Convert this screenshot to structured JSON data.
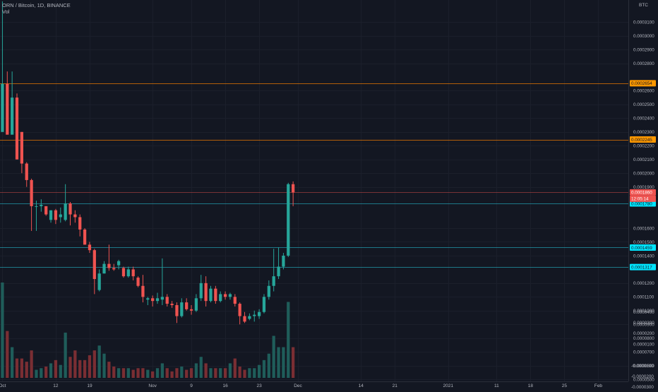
{
  "header": {
    "title": "ORN / Bitcoin, 1D, BINANCE",
    "volume_label": "Vol"
  },
  "axis": {
    "currency": "BTC"
  },
  "colors": {
    "background": "#131722",
    "up": "#26a69a",
    "down": "#ef5350",
    "up_volume": "#1f5d5a",
    "down_volume": "#7a2e33",
    "horizontal_line_orange": "#f57c00",
    "horizontal_line_teal": "#26c6da",
    "price_tag_red": "#ef5350",
    "price_tag_cyan": "#00e5ff",
    "price_tag_orange": "#ff9800"
  },
  "chart_data": {
    "type": "candlestick",
    "price_ylim": [
      4.85e-05,
      0.000326
    ],
    "price_ticks": [
      "0.0003100",
      "0.0003000",
      "0.0002900",
      "0.0002800",
      "0.0002600",
      "0.0002500",
      "0.0002400",
      "0.0002300",
      "0.0002200",
      "0.0002100",
      "0.0002000",
      "0.0001900",
      "0.0001600",
      "0.0001500",
      "0.0001400",
      "0.0001200",
      "0.0001100",
      "0.0001000",
      "0.0000900",
      "0.0000800",
      "0.0000700",
      "0.0000600",
      "0.0000500"
    ],
    "volume_ticks": [
      "0.0000400",
      "0.0000300",
      "0.0000200",
      "0.0000100",
      "-0.0000100",
      "-0.0000200",
      "-0.0000300"
    ],
    "x_ticks": [
      {
        "label": "Oct",
        "index": 0
      },
      {
        "label": "12",
        "index": 11
      },
      {
        "label": "19",
        "index": 18
      },
      {
        "label": "Nov",
        "index": 31
      },
      {
        "label": "9",
        "index": 39
      },
      {
        "label": "16",
        "index": 46
      },
      {
        "label": "23",
        "index": 53
      },
      {
        "label": "Dec",
        "index": 61
      },
      {
        "label": "14",
        "index": 74
      },
      {
        "label": "21",
        "index": 81
      },
      {
        "label": "2021",
        "index": 92
      },
      {
        "label": "11",
        "index": 102
      },
      {
        "label": "18",
        "index": 109
      },
      {
        "label": "25",
        "index": 116
      },
      {
        "label": "Feb",
        "index": 123
      }
    ],
    "x_domain": [
      -0.5,
      129.2
    ],
    "horizontal_lines": [
      {
        "value": 0.0002654,
        "label": "0.0002654",
        "style": "orange"
      },
      {
        "value": 0.0002245,
        "label": "0.0002245",
        "style": "orange"
      },
      {
        "value": 0.000178,
        "label": "0.0001780",
        "style": "cyan"
      },
      {
        "value": 0.0001459,
        "label": "0.0001459",
        "style": "cyan"
      },
      {
        "value": 0.0001317,
        "label": "0.0001317",
        "style": "cyan"
      }
    ],
    "last_price": {
      "value": 0.000186,
      "label": "0.0001860",
      "countdown": "12:05:14"
    },
    "candles": [
      {
        "o": 0.00023,
        "h": 0.000325,
        "l": 0.00023,
        "c": 0.000265,
        "v": 5.9e-05
      },
      {
        "o": 0.000265,
        "h": 0.000274,
        "l": 0.00023,
        "c": 0.000228,
        "v": 2.9e-05
      },
      {
        "o": 0.000228,
        "h": 0.000274,
        "l": 0.00023,
        "c": 0.000255,
        "v": 1.9e-05
      },
      {
        "o": 0.000255,
        "h": 0.000258,
        "l": 0.00021,
        "c": 0.00021,
        "v": 1.2e-05
      },
      {
        "o": 0.00023,
        "h": 0.00023,
        "l": 0.0002,
        "c": 0.000207,
        "v": 1.2e-05
      },
      {
        "o": 0.000207,
        "h": 0.000208,
        "l": 0.00019,
        "c": 0.000195,
        "v": 1e-05
      },
      {
        "o": 0.000195,
        "h": 0.000196,
        "l": 0.000158,
        "c": 0.000176,
        "v": 1.7e-05
      },
      {
        "o": 0.000176,
        "h": 0.00018,
        "l": 0.000158,
        "c": 0.000176,
        "v": 5e-06
      },
      {
        "o": 0.000176,
        "h": 0.000181,
        "l": 0.000172,
        "c": 0.000177,
        "v": 6e-06
      },
      {
        "o": 0.000176,
        "h": 0.000176,
        "l": 0.000169,
        "c": 0.00017,
        "v": 7e-06
      },
      {
        "o": 0.000166,
        "h": 0.000173,
        "l": 0.000164,
        "c": 0.000173,
        "v": 9e-06
      },
      {
        "o": 0.000173,
        "h": 0.000174,
        "l": 0.000163,
        "c": 0.000166,
        "v": 1.1e-05
      },
      {
        "o": 0.000168,
        "h": 0.000175,
        "l": 0.000164,
        "c": 0.00017,
        "v": 8e-06
      },
      {
        "o": 0.000166,
        "h": 0.000192,
        "l": 0.000165,
        "c": 0.000178,
        "v": 2.8e-05
      },
      {
        "o": 0.000178,
        "h": 0.000179,
        "l": 0.000162,
        "c": 0.00017,
        "v": 1.3e-05
      },
      {
        "o": 0.00017,
        "h": 0.000173,
        "l": 0.000164,
        "c": 0.000168,
        "v": 1.7e-05
      },
      {
        "o": 0.000168,
        "h": 0.00017,
        "l": 0.000154,
        "c": 0.000159,
        "v": 1.1e-05
      },
      {
        "o": 0.000159,
        "h": 0.00016,
        "l": 0.000148,
        "c": 0.000148,
        "v": 1.1e-05
      },
      {
        "o": 0.000148,
        "h": 0.00015,
        "l": 0.000142,
        "c": 0.000144,
        "v": 1.4e-05
      },
      {
        "o": 0.000144,
        "h": 0.000145,
        "l": 0.000112,
        "c": 0.000123,
        "v": 1.7e-05
      },
      {
        "o": 0.000115,
        "h": 0.00013,
        "l": 0.000114,
        "c": 0.000127,
        "v": 2e-05
      },
      {
        "o": 0.000127,
        "h": 0.000136,
        "l": 0.000127,
        "c": 0.000134,
        "v": 1.5e-05
      },
      {
        "o": 0.000134,
        "h": 0.000148,
        "l": 0.000129,
        "c": 0.000131,
        "v": 1e-05
      },
      {
        "o": 0.000131,
        "h": 0.000134,
        "l": 0.000129,
        "c": 0.00013,
        "v": 7e-06
      },
      {
        "o": 0.000133,
        "h": 0.000137,
        "l": 0.00013,
        "c": 0.000136,
        "v": 6e-06
      },
      {
        "o": 0.000131,
        "h": 0.000132,
        "l": 0.000124,
        "c": 0.000125,
        "v": 6e-06
      },
      {
        "o": 0.000125,
        "h": 0.000132,
        "l": 0.000124,
        "c": 0.00013,
        "v": 6e-06
      },
      {
        "o": 0.00013,
        "h": 0.000132,
        "l": 0.000122,
        "c": 0.000125,
        "v": 5e-06
      },
      {
        "o": 0.000124,
        "h": 0.000125,
        "l": 0.000117,
        "c": 0.000118,
        "v": 6e-06
      },
      {
        "o": 0.000118,
        "h": 0.000126,
        "l": 0.000106,
        "c": 0.00011,
        "v": 6e-06
      },
      {
        "o": 0.000108,
        "h": 0.00011,
        "l": 0.000104,
        "c": 0.000109,
        "v": 5e-06
      },
      {
        "o": 0.000109,
        "h": 0.000111,
        "l": 0.000103,
        "c": 0.000107,
        "v": 4e-06
      },
      {
        "o": 0.000107,
        "h": 0.000113,
        "l": 0.000105,
        "c": 0.000109,
        "v": 6e-06
      },
      {
        "o": 0.000108,
        "h": 0.000138,
        "l": 0.000104,
        "c": 0.00011,
        "v": 9e-06
      },
      {
        "o": 0.00011,
        "h": 0.000112,
        "l": 0.000103,
        "c": 0.000105,
        "v": 6e-06
      },
      {
        "o": 0.000105,
        "h": 0.000107,
        "l": 0.000102,
        "c": 0.000104,
        "v": 4e-06
      },
      {
        "o": 0.000104,
        "h": 0.000106,
        "l": 9.1e-05,
        "c": 9.6e-05,
        "v": 6e-06
      },
      {
        "o": 9.6e-05,
        "h": 0.000109,
        "l": 9.5e-05,
        "c": 0.000106,
        "v": 7e-06
      },
      {
        "o": 0.000106,
        "h": 0.000109,
        "l": 0.0001,
        "c": 0.000101,
        "v": 5e-06
      },
      {
        "o": 0.000101,
        "h": 0.000104,
        "l": 9.7e-05,
        "c": 0.0001,
        "v": 6e-06
      },
      {
        "o": 0.0001,
        "h": 0.000112,
        "l": 9.9e-05,
        "c": 0.000109,
        "v": 9e-06
      },
      {
        "o": 0.000109,
        "h": 0.000126,
        "l": 0.000107,
        "c": 0.00012,
        "v": 1.3e-05
      },
      {
        "o": 0.00012,
        "h": 0.000125,
        "l": 0.000103,
        "c": 0.000107,
        "v": 9e-06
      },
      {
        "o": 0.000107,
        "h": 0.000118,
        "l": 0.000106,
        "c": 0.000116,
        "v": 6e-06
      },
      {
        "o": 0.000116,
        "h": 0.000118,
        "l": 0.000105,
        "c": 0.000107,
        "v": 6e-06
      },
      {
        "o": 0.000107,
        "h": 0.000114,
        "l": 0.000106,
        "c": 0.000112,
        "v": 6e-06
      },
      {
        "o": 0.000112,
        "h": 0.000114,
        "l": 0.000108,
        "c": 0.00011,
        "v": 6e-06
      },
      {
        "o": 0.00011,
        "h": 0.000113,
        "l": 0.000108,
        "c": 0.000112,
        "v": 9e-06
      },
      {
        "o": 0.00011,
        "h": 0.000112,
        "l": 0.000103,
        "c": 0.000105,
        "v": 1.2e-05
      },
      {
        "o": 0.000105,
        "h": 0.000106,
        "l": 9e-05,
        "c": 9.6e-05,
        "v": 7e-06
      },
      {
        "o": 9.6e-05,
        "h": 9.9e-05,
        "l": 9.1e-05,
        "c": 9.2e-05,
        "v": 5e-06
      },
      {
        "o": 9.4e-05,
        "h": 9.8e-05,
        "l": 9.3e-05,
        "c": 9.6e-05,
        "v": 6e-06
      },
      {
        "o": 9.6e-05,
        "h": 0.0001,
        "l": 9.2e-05,
        "c": 9.7e-05,
        "v": 6e-06
      },
      {
        "o": 9.6e-05,
        "h": 0.000101,
        "l": 9.4e-05,
        "c": 9.9e-05,
        "v": 8e-06
      },
      {
        "o": 9.9e-05,
        "h": 0.000112,
        "l": 9.8e-05,
        "c": 0.00011,
        "v": 1.1e-05
      },
      {
        "o": 0.00011,
        "h": 0.000122,
        "l": 0.000108,
        "c": 0.000118,
        "v": 1.5e-05
      },
      {
        "o": 0.000118,
        "h": 0.000145,
        "l": 0.000114,
        "c": 0.000125,
        "v": 2.6e-05
      },
      {
        "o": 0.000125,
        "h": 0.000146,
        "l": 0.000123,
        "c": 0.000132,
        "v": 1.9e-05
      },
      {
        "o": 0.000132,
        "h": 0.000142,
        "l": 0.00013,
        "c": 0.00014,
        "v": 1.9e-05
      },
      {
        "o": 0.00014,
        "h": 0.000193,
        "l": 0.000139,
        "c": 0.000192,
        "v": 4.7e-05
      },
      {
        "o": 0.000192,
        "h": 0.000194,
        "l": 0.000176,
        "c": 0.000186,
        "v": 1.9e-05
      }
    ]
  }
}
